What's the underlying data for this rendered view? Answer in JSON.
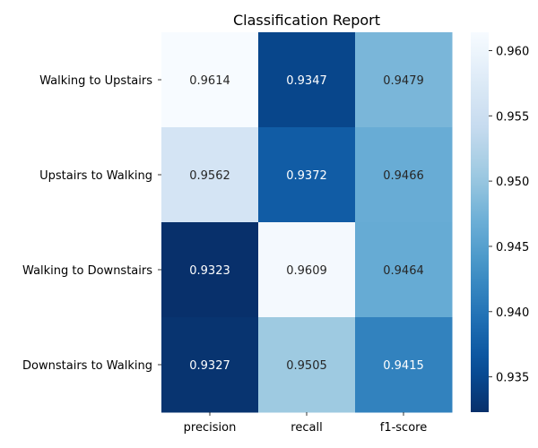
{
  "chart_data": {
    "type": "heatmap",
    "title": "Classification Report",
    "xlabel": "",
    "ylabel": "",
    "columns": [
      "precision",
      "recall",
      "f1-score"
    ],
    "rows": [
      "Walking to Upstairs",
      "Upstairs to Walking",
      "Walking to Downstairs",
      "Downstairs to Walking"
    ],
    "values": [
      [
        0.9614,
        0.9347,
        0.9479
      ],
      [
        0.9562,
        0.9372,
        0.9466
      ],
      [
        0.9323,
        0.9609,
        0.9464
      ],
      [
        0.9327,
        0.9505,
        0.9415
      ]
    ],
    "value_labels": [
      [
        "0.9614",
        "0.9347",
        "0.9479"
      ],
      [
        "0.9562",
        "0.9372",
        "0.9466"
      ],
      [
        "0.9323",
        "0.9609",
        "0.9464"
      ],
      [
        "0.9327",
        "0.9505",
        "0.9415"
      ]
    ],
    "colormap": "Blues_r",
    "vmin": 0.9323,
    "vmax": 0.9614,
    "colorbar": {
      "ticks": [
        0.935,
        0.94,
        0.945,
        0.95,
        0.955,
        0.96
      ],
      "tick_labels": [
        "0.935",
        "0.940",
        "0.945",
        "0.950",
        "0.955",
        "0.960"
      ]
    }
  }
}
